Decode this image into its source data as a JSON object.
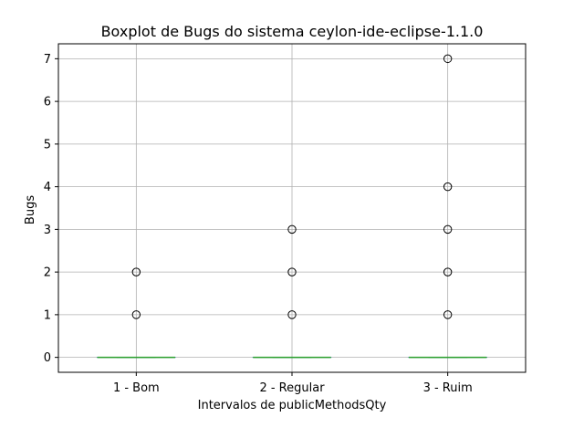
{
  "chart_data": {
    "type": "box",
    "title": "Boxplot de Bugs do sistema ceylon-ide-eclipse-1.1.0",
    "xlabel": "Intervalos de publicMethodsQty",
    "ylabel": "Bugs",
    "categories": [
      "1 - Bom",
      "2 - Regular",
      "3 - Ruim"
    ],
    "ylim": [
      -0.35,
      7.35
    ],
    "yticks": [
      0,
      1,
      2,
      3,
      4,
      5,
      6,
      7
    ],
    "grid": true,
    "boxes": [
      {
        "category": "1 - Bom",
        "min": 0,
        "q1": 0,
        "median": 0,
        "q3": 0,
        "max": 0,
        "outliers": [
          1,
          2
        ]
      },
      {
        "category": "2 - Regular",
        "min": 0,
        "q1": 0,
        "median": 0,
        "q3": 0,
        "max": 0,
        "outliers": [
          1,
          2,
          3
        ]
      },
      {
        "category": "3 - Ruim",
        "min": 0,
        "q1": 0,
        "median": 0,
        "q3": 0,
        "max": 0,
        "outliers": [
          1,
          2,
          3,
          4,
          7
        ]
      }
    ],
    "colors": {
      "box": "#1f77b4",
      "median": "#2ca02c",
      "grid": "#b0b0b0",
      "axis": "#000000",
      "flier": "#000000"
    }
  }
}
